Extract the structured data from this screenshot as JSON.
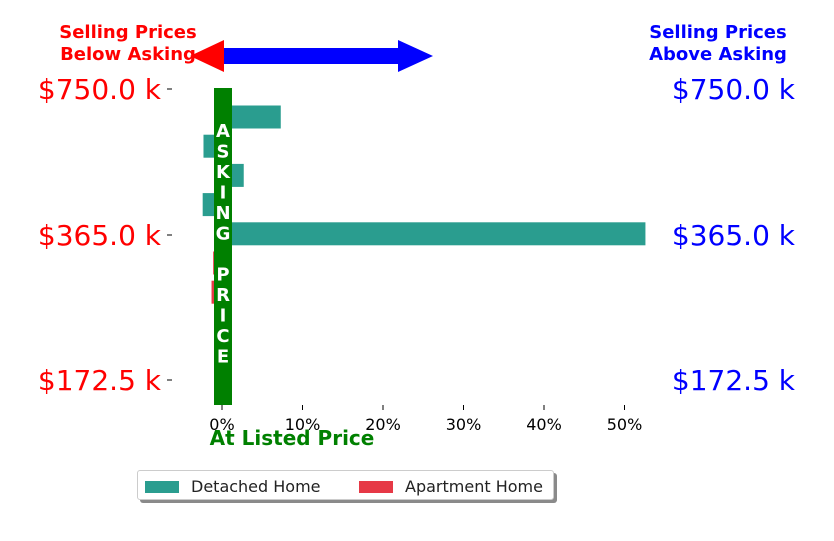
{
  "chart_data": {
    "type": "bar",
    "orientation": "horizontal",
    "y_tick_labels": [
      "$750.0 k",
      "$365.0 k",
      "$172.5 k"
    ],
    "x_tick_labels": [
      "0%",
      "10%",
      "20%",
      "30%",
      "40%",
      "50%"
    ],
    "xlim": [
      -4,
      54
    ],
    "xlabel": "At Listed Price",
    "center_label_letters": [
      "A",
      "S",
      "K",
      "I",
      "N",
      "G",
      "",
      "P",
      "R",
      "I",
      "C",
      "E"
    ],
    "header_left": [
      "Selling Prices",
      "Below Asking"
    ],
    "header_right": [
      "Selling Prices",
      "Above Asking"
    ],
    "series": [
      {
        "name": "Detached Home",
        "color": "#2a9d8f",
        "values": [
          7.3,
          -2.3,
          2.7,
          -2.4,
          52.6,
          null,
          null,
          null
        ]
      },
      {
        "name": "Apartment Home",
        "color": "#e63946",
        "values": [
          null,
          null,
          null,
          null,
          null,
          -1.1,
          -1.3,
          -0.7
        ]
      }
    ],
    "colors": {
      "left": "#ff0000",
      "right": "#0000ff",
      "center": "#008000"
    },
    "legend": {
      "placement": "bottom-center",
      "columns": 2
    }
  }
}
